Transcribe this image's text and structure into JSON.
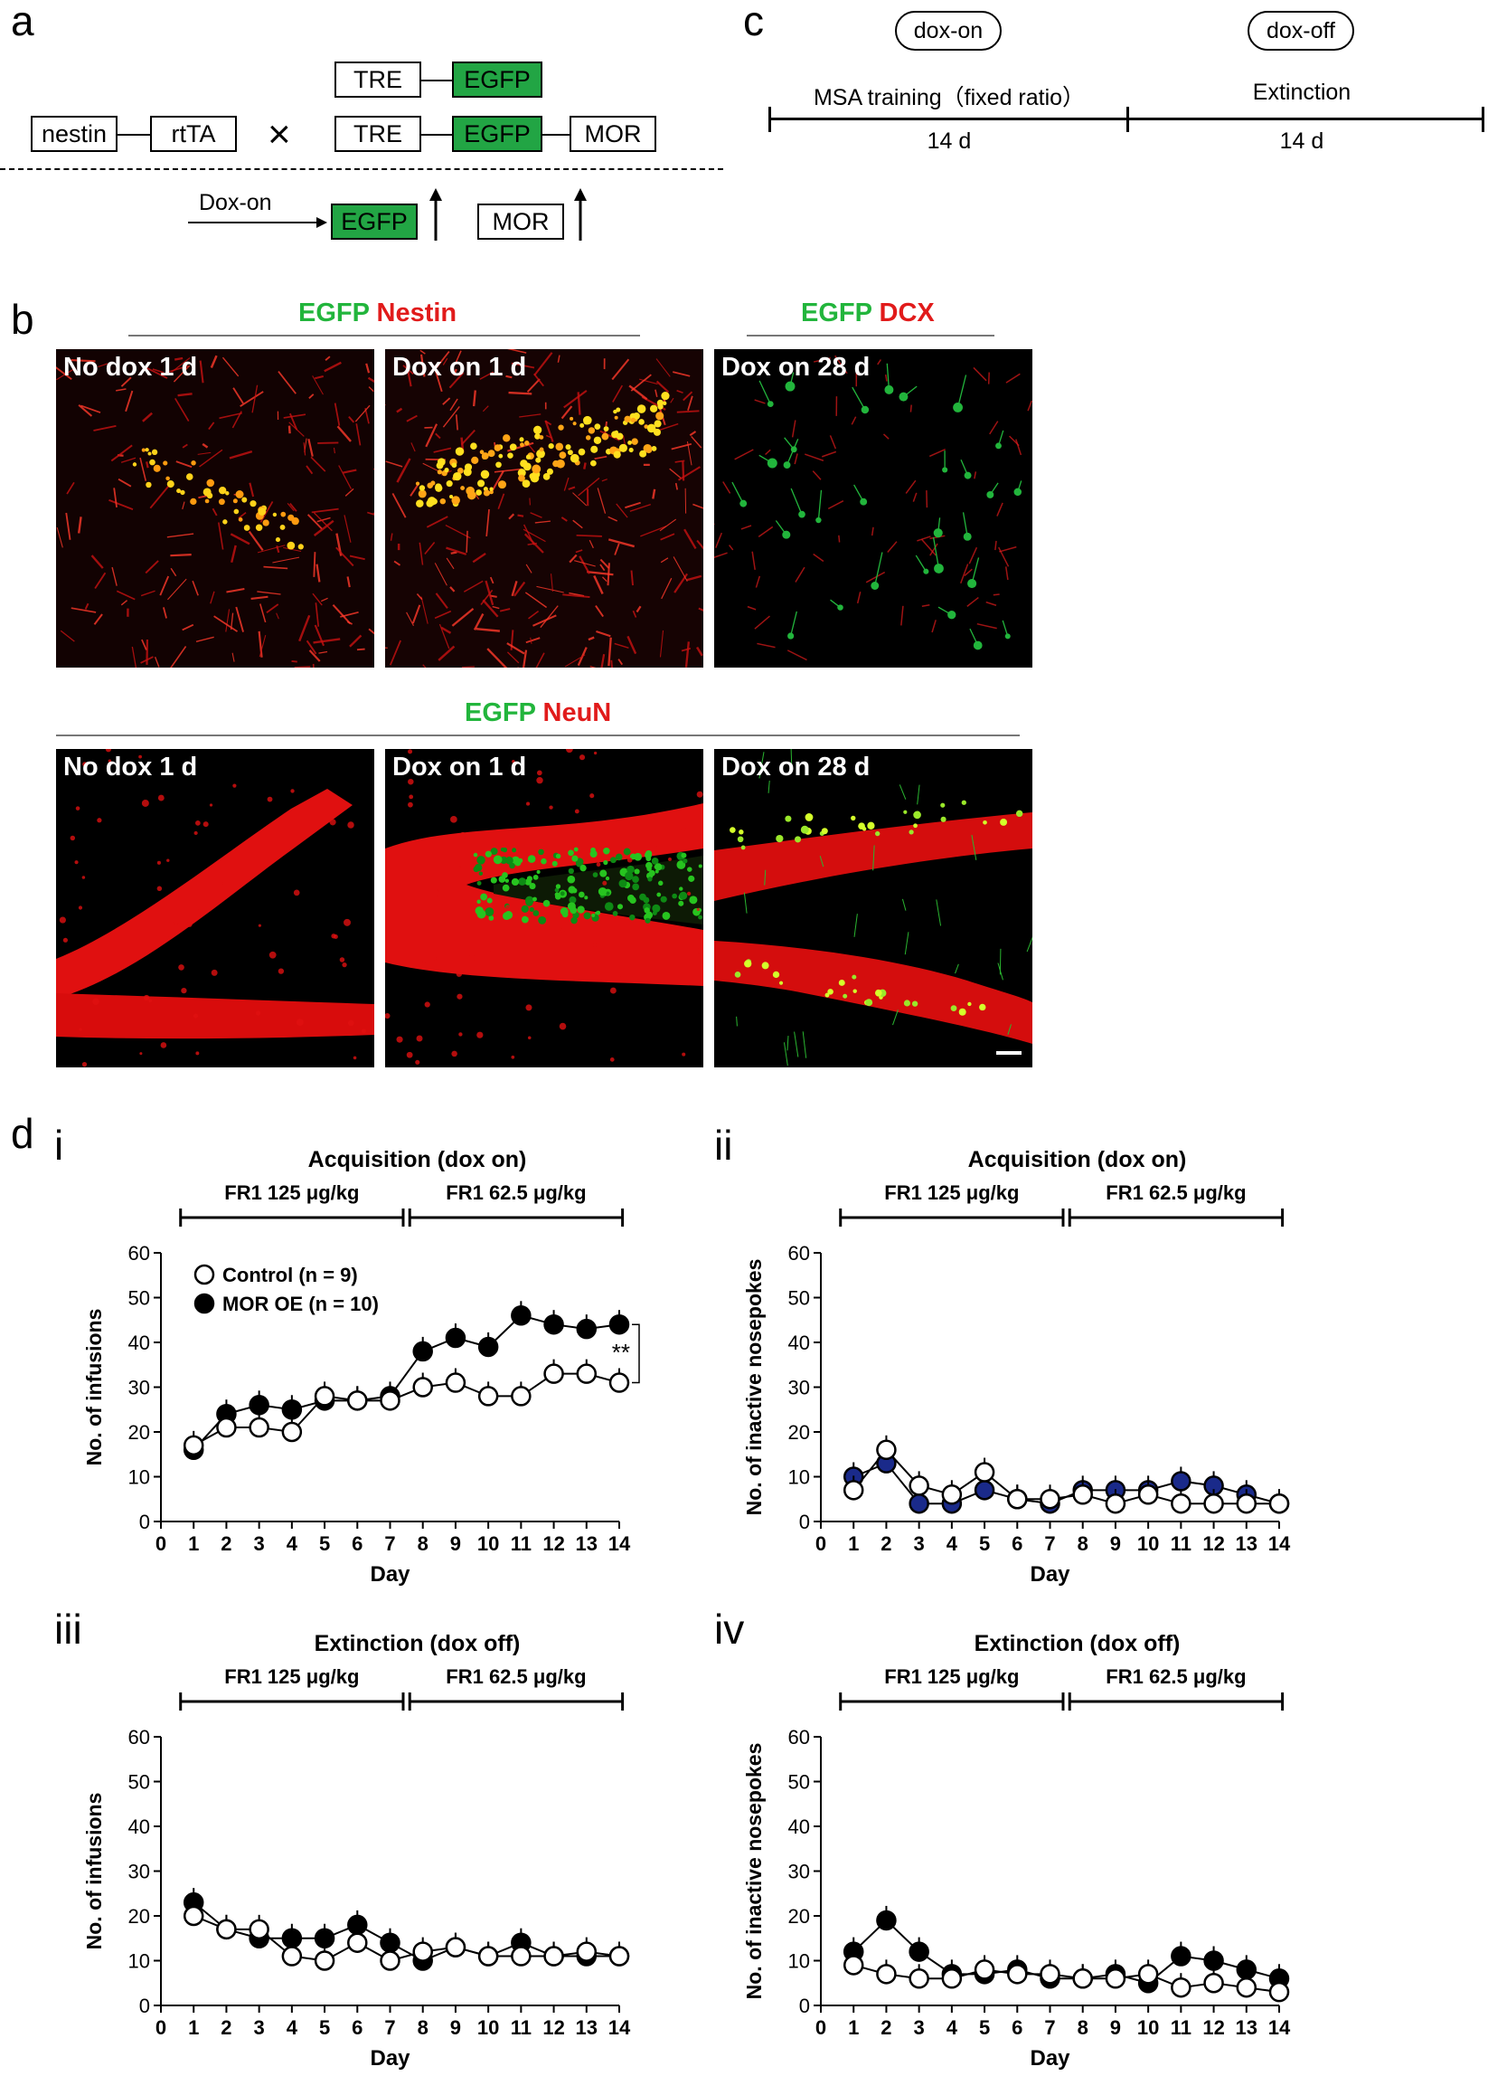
{
  "panels": {
    "a": "a",
    "b": "b",
    "c": "c",
    "d": "d"
  },
  "panel_a": {
    "row1": {
      "tre": "TRE",
      "egfp": "EGFP"
    },
    "row2": {
      "nestin": "nestin",
      "rtta": "rtTA",
      "cross": "×",
      "tre": "TRE",
      "egfp": "EGFP",
      "mor": "MOR"
    },
    "row3": {
      "doxon": "Dox-on",
      "egfp": "EGFP",
      "mor": "MOR"
    }
  },
  "panel_c": {
    "pill1": "dox-on",
    "pill2": "dox-off",
    "phase1": "MSA training（fixed ratio）",
    "phase2": "Extinction",
    "dur1": "14 d",
    "dur2": "14 d"
  },
  "panel_b": {
    "top_group1": {
      "green": "EGFP",
      "red": "Nestin"
    },
    "top_group2": {
      "green": "EGFP",
      "red": "DCX"
    },
    "bottom_group": {
      "green": "EGFP",
      "red": "NeuN"
    },
    "titles": {
      "t1": "No dox 1 d",
      "t2": "Dox on 1 d",
      "t3": "Dox on 28 d",
      "t4": "No dox 1 d",
      "t5": "Dox on 1 d",
      "t6": "Dox on 28 d"
    }
  },
  "colors": {
    "green": "#22b53c",
    "red": "#e11b1b",
    "box_green": "#22a544",
    "mor_fill": "#000000",
    "inactive_fill": "#1a2a8a"
  },
  "chart_data": [
    {
      "id": "i",
      "roman": "i",
      "type": "line",
      "title": "Acquisition (dox on)",
      "phase_labels": [
        "FR1 125 μg/kg",
        "FR1 62.5 μg/kg"
      ],
      "xlabel": "Day",
      "ylabel": "No. of infusions",
      "xlim": [
        0,
        14
      ],
      "ylim": [
        0,
        60
      ],
      "yticks": [
        0,
        10,
        20,
        30,
        40,
        50,
        60
      ],
      "x": [
        1,
        2,
        3,
        4,
        5,
        6,
        7,
        8,
        9,
        10,
        11,
        12,
        13,
        14
      ],
      "legend": true,
      "annotation": "**",
      "series": [
        {
          "name": "Control (n = 9)",
          "marker": "open",
          "values": [
            17,
            21,
            21,
            20,
            28,
            27,
            27,
            30,
            31,
            28,
            28,
            33,
            33,
            31
          ]
        },
        {
          "name": "MOR OE (n = 10)",
          "marker": "filled",
          "values": [
            16,
            24,
            26,
            25,
            27,
            27,
            28,
            38,
            41,
            39,
            46,
            44,
            43,
            44
          ]
        }
      ]
    },
    {
      "id": "ii",
      "roman": "ii",
      "type": "line",
      "title": "Acquisition (dox on)",
      "phase_labels": [
        "FR1 125 μg/kg",
        "FR1 62.5 μg/kg"
      ],
      "xlabel": "Day",
      "ylabel": "No. of inactive nosepokes",
      "xlim": [
        0,
        14
      ],
      "ylim": [
        0,
        60
      ],
      "yticks": [
        0,
        10,
        20,
        30,
        40,
        50,
        60
      ],
      "x": [
        1,
        2,
        3,
        4,
        5,
        6,
        7,
        8,
        9,
        10,
        11,
        12,
        13,
        14
      ],
      "legend": false,
      "annotation": "",
      "series": [
        {
          "name": "Control",
          "marker": "open",
          "values": [
            7,
            16,
            8,
            6,
            11,
            5,
            5,
            6,
            4,
            6,
            4,
            4,
            4,
            4
          ]
        },
        {
          "name": "MOR OE",
          "marker": "blue",
          "values": [
            10,
            13,
            4,
            4,
            7,
            5,
            4,
            7,
            7,
            7,
            9,
            8,
            6,
            4
          ]
        }
      ]
    },
    {
      "id": "iii",
      "roman": "iii",
      "type": "line",
      "title": "Extinction (dox off)",
      "phase_labels": [
        "FR1 125 μg/kg",
        "FR1 62.5 μg/kg"
      ],
      "xlabel": "Day",
      "ylabel": "No. of infusions",
      "xlim": [
        0,
        14
      ],
      "ylim": [
        0,
        60
      ],
      "yticks": [
        0,
        10,
        20,
        30,
        40,
        50,
        60
      ],
      "x": [
        1,
        2,
        3,
        4,
        5,
        6,
        7,
        8,
        9,
        10,
        11,
        12,
        13,
        14
      ],
      "legend": false,
      "annotation": "",
      "series": [
        {
          "name": "Control",
          "marker": "open",
          "values": [
            20,
            17,
            17,
            11,
            10,
            14,
            10,
            12,
            13,
            11,
            11,
            11,
            12,
            11
          ]
        },
        {
          "name": "MOR OE",
          "marker": "filled",
          "values": [
            23,
            17,
            15,
            15,
            15,
            18,
            14,
            10,
            13,
            11,
            14,
            11,
            11,
            11
          ]
        }
      ]
    },
    {
      "id": "iv",
      "roman": "iv",
      "type": "line",
      "title": "Extinction (dox off)",
      "phase_labels": [
        "FR1 125 μg/kg",
        "FR1 62.5 μg/kg"
      ],
      "xlabel": "Day",
      "ylabel": "No. of inactive nosepokes",
      "xlim": [
        0,
        14
      ],
      "ylim": [
        0,
        60
      ],
      "yticks": [
        0,
        10,
        20,
        30,
        40,
        50,
        60
      ],
      "x": [
        1,
        2,
        3,
        4,
        5,
        6,
        7,
        8,
        9,
        10,
        11,
        12,
        13,
        14
      ],
      "legend": false,
      "annotation": "",
      "series": [
        {
          "name": "Control",
          "marker": "open",
          "values": [
            9,
            7,
            6,
            6,
            8,
            7,
            7,
            6,
            6,
            7,
            4,
            5,
            4,
            3
          ]
        },
        {
          "name": "MOR OE",
          "marker": "filled",
          "values": [
            12,
            19,
            12,
            7,
            7,
            8,
            6,
            6,
            7,
            5,
            11,
            10,
            8,
            6
          ]
        }
      ]
    }
  ]
}
